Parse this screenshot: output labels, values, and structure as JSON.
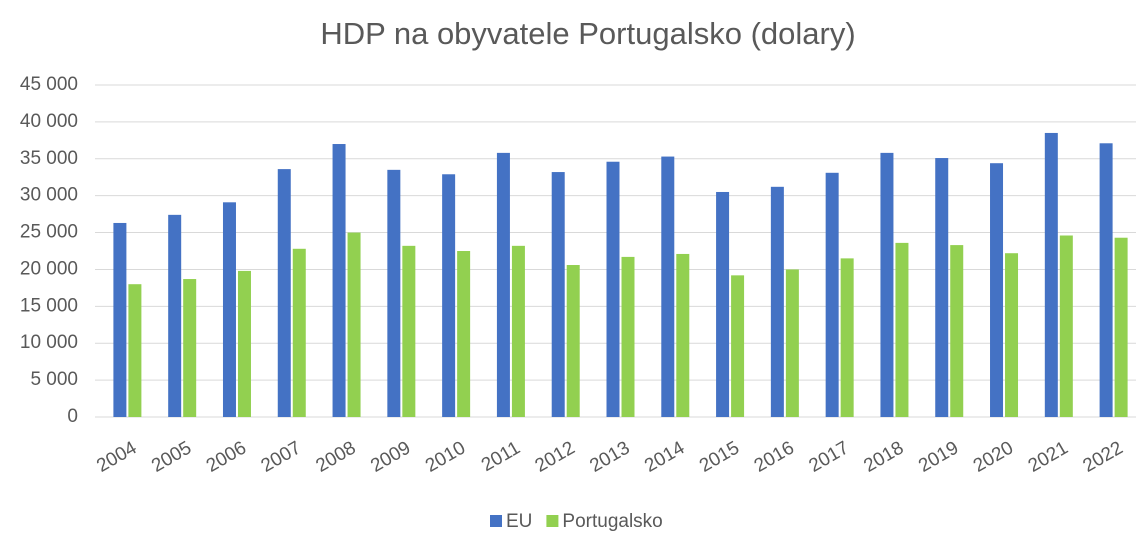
{
  "chart_data": {
    "type": "bar",
    "title": "HDP na obyvatele Portugalsko (dolary)",
    "categories": [
      "2004",
      "2005",
      "2006",
      "2007",
      "2008",
      "2009",
      "2010",
      "2011",
      "2012",
      "2013",
      "2014",
      "2015",
      "2016",
      "2017",
      "2018",
      "2019",
      "2020",
      "2021",
      "2022"
    ],
    "series": [
      {
        "name": "EU",
        "color": "#4472c4",
        "values": [
          26300,
          27400,
          29100,
          33600,
          37000,
          33500,
          32900,
          35800,
          33200,
          34600,
          35300,
          30500,
          31200,
          33100,
          35800,
          35100,
          34400,
          38500,
          37100
        ]
      },
      {
        "name": "Portugalsko",
        "color": "#92d050",
        "values": [
          18000,
          18700,
          19800,
          22800,
          25000,
          23200,
          22500,
          23200,
          20600,
          21700,
          22100,
          19200,
          20000,
          21500,
          23600,
          23300,
          22200,
          24600,
          24300
        ]
      }
    ],
    "ylim": [
      0,
      45000
    ],
    "yticks": [
      0,
      {
        "value": 5000,
        "label": "5 000"
      },
      {
        "value": 10000,
        "label": "10 000"
      },
      {
        "value": 15000,
        "label": "15 000"
      },
      {
        "value": 20000,
        "label": "20 000"
      },
      {
        "value": 25000,
        "label": "25 000"
      },
      {
        "value": 30000,
        "label": "30 000"
      },
      {
        "value": 35000,
        "label": "35 000"
      },
      {
        "value": 40000,
        "label": "40 000"
      },
      {
        "value": 45000,
        "label": "45 000"
      }
    ],
    "grid": true,
    "legend": "bottom"
  }
}
